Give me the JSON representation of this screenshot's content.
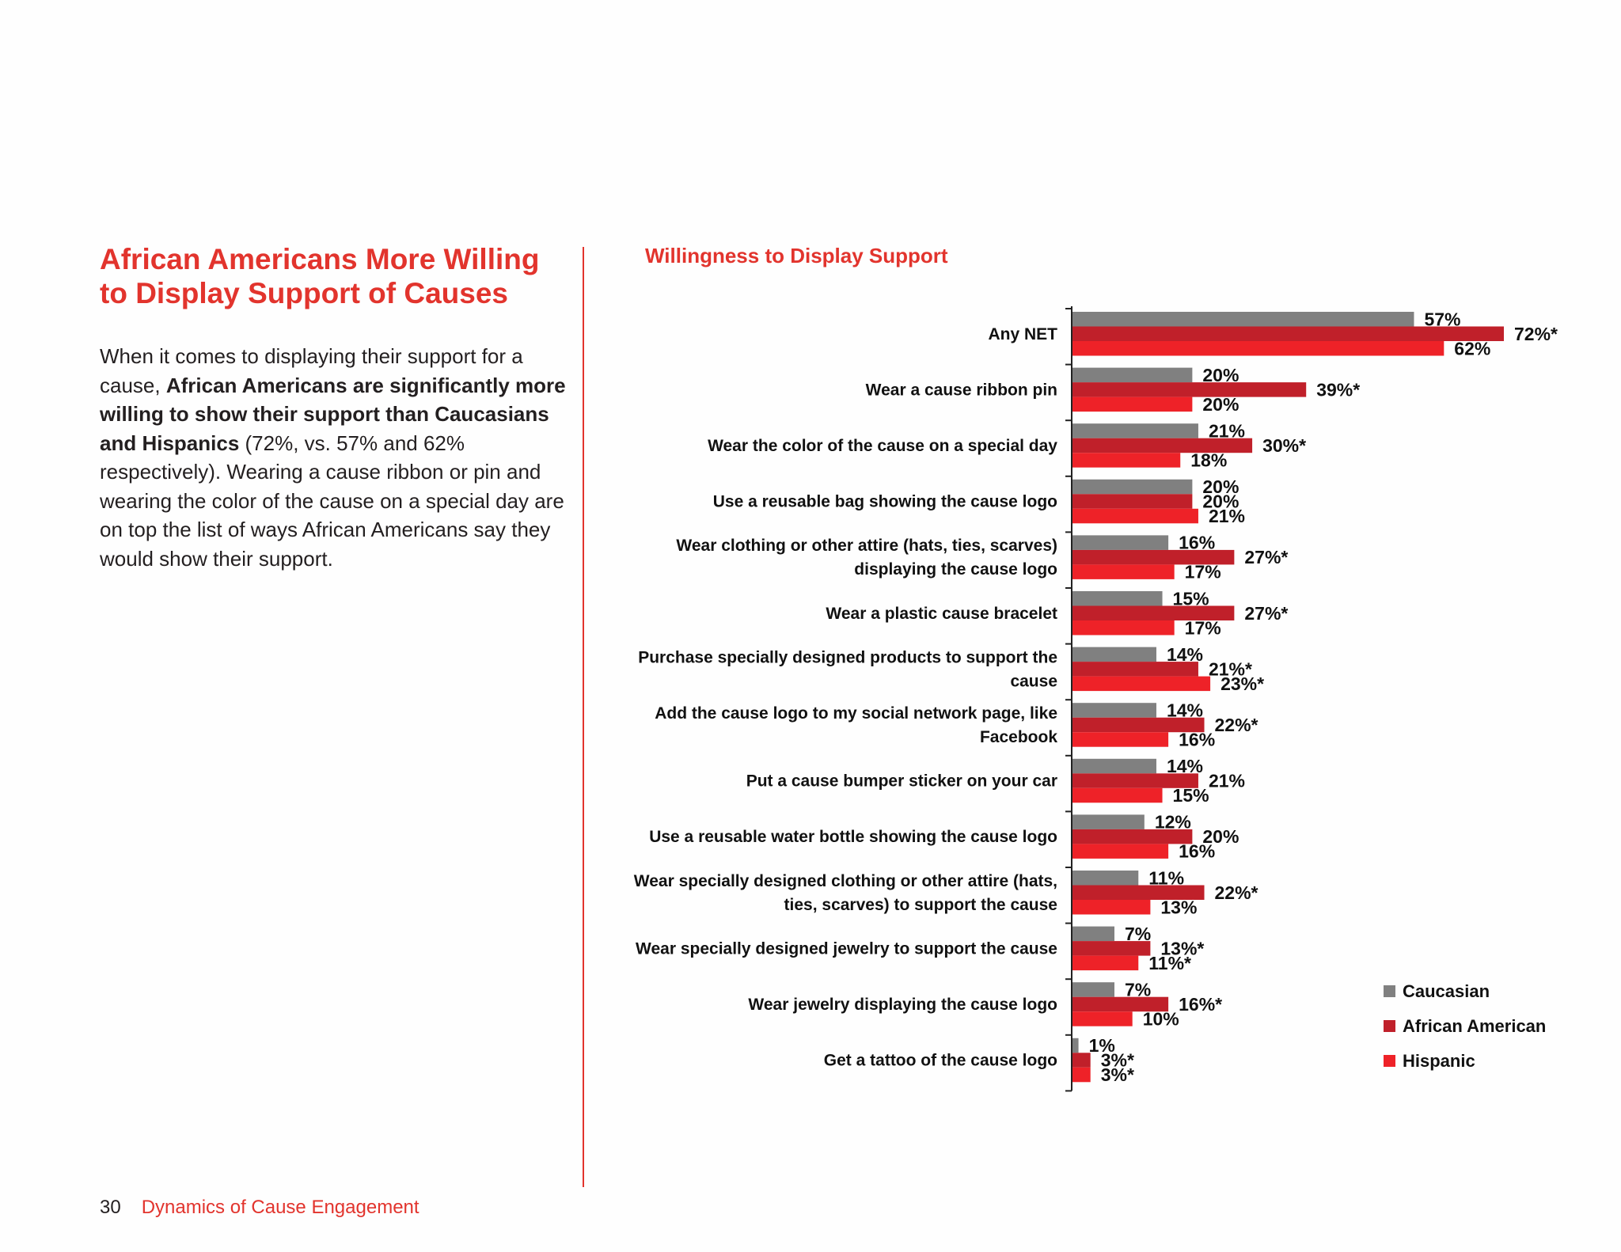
{
  "article": {
    "headline_line1": "African Americans More Willing",
    "headline_line2": "to Display Support of Causes",
    "body_intro": "When it comes to displaying their support for a cause, ",
    "body_bold": "African Americans are significantly more willing to show their support than Caucasians and Hispanics",
    "body_rest": " (72%, vs. 57% and 62% respectively). Wearing a cause ribbon or pin and wearing the color of the cause on a special day are on top the list of ways African Americans say they would show their support."
  },
  "footer": {
    "page_number": "30",
    "publication": "Dynamics of Cause Engagement"
  },
  "chart_data": {
    "type": "bar",
    "orientation": "horizontal",
    "title": "Willingness to Display Support",
    "xlim": [
      0,
      72
    ],
    "legend_position": "bottom-right",
    "categories": [
      [
        "Any NET"
      ],
      [
        "Wear a cause ribbon pin"
      ],
      [
        "Wear the color of the cause on a special day"
      ],
      [
        "Use a reusable bag showing the cause logo"
      ],
      [
        "Wear clothing or other attire (hats, ties, scarves)",
        "displaying the cause logo"
      ],
      [
        "Wear a plastic cause bracelet"
      ],
      [
        "Purchase specially designed products to support the",
        "cause"
      ],
      [
        "Add the cause logo to my social network page, like",
        "Facebook"
      ],
      [
        "Put a cause bumper sticker on your car"
      ],
      [
        "Use a reusable water bottle showing the cause logo"
      ],
      [
        "Wear specially designed clothing or other attire (hats,",
        "ties, scarves) to support the cause"
      ],
      [
        "Wear specially designed jewelry to support the cause"
      ],
      [
        "Wear jewelry displaying the cause logo"
      ],
      [
        "Get a tattoo of the cause logo"
      ]
    ],
    "series": [
      {
        "name": "Caucasian",
        "color": "#808080",
        "values": [
          57,
          20,
          21,
          20,
          16,
          15,
          14,
          14,
          14,
          12,
          11,
          7,
          7,
          1
        ],
        "labels": [
          "57%",
          "20%",
          "21%",
          "20%",
          "16%",
          "15%",
          "14%",
          "14%",
          "14%",
          "12%",
          "11%",
          "7%",
          "7%",
          "1%"
        ]
      },
      {
        "name": "African American",
        "color": "#c0202a",
        "values": [
          72,
          39,
          30,
          20,
          27,
          27,
          21,
          22,
          21,
          20,
          22,
          13,
          16,
          3
        ],
        "labels": [
          "72%*",
          "39%*",
          "30%*",
          "20%",
          "27%*",
          "27%*",
          "21%*",
          "22%*",
          "21%",
          "20%",
          "22%*",
          "13%*",
          "16%*",
          "3%*"
        ]
      },
      {
        "name": "Hispanic",
        "color": "#ee2228",
        "values": [
          62,
          20,
          18,
          21,
          17,
          17,
          23,
          16,
          15,
          16,
          13,
          11,
          10,
          3
        ],
        "labels": [
          "62%",
          "20%",
          "18%",
          "21%",
          "17%",
          "17%",
          "23%*",
          "16%",
          "15%",
          "16%",
          "13%",
          "11%*",
          "10%",
          "3%*"
        ]
      }
    ]
  }
}
